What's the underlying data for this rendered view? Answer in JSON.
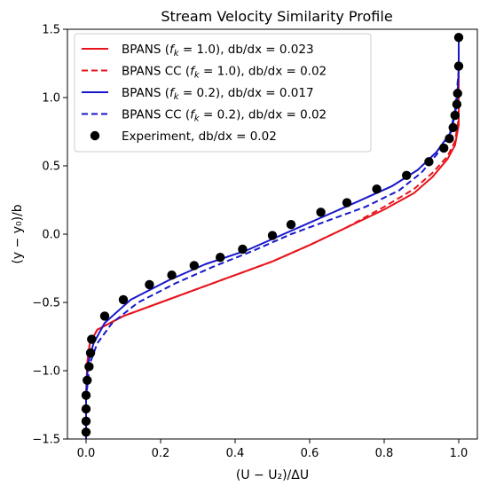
{
  "chart_data": {
    "type": "line",
    "title": "Stream Velocity Similarity Profile",
    "xlabel": "(U − U₂)/ΔU",
    "ylabel": "(y − y₀)/b",
    "xlim": [
      -0.05,
      1.05
    ],
    "ylim": [
      -1.5,
      1.5
    ],
    "x_ticks": [
      0.0,
      0.2,
      0.4,
      0.6,
      0.8,
      1.0
    ],
    "x_tick_labels": [
      "0.0",
      "0.2",
      "0.4",
      "0.6",
      "0.8",
      "1.0"
    ],
    "y_ticks": [
      -1.5,
      -1.0,
      -0.5,
      0.0,
      0.5,
      1.0,
      1.5
    ],
    "y_tick_labels": [
      "−1.5",
      "−1.0",
      "−0.5",
      "0.0",
      "0.5",
      "1.0",
      "1.5"
    ],
    "grid": false,
    "legend_position": "top-left",
    "series": [
      {
        "name": "BPANS (fk = 1.0), db/dx = 0.023",
        "color": "#e8131b",
        "style": "solid",
        "points": [
          [
            0.0,
            -1.5
          ],
          [
            0.0,
            -1.2
          ],
          [
            0.003,
            -0.95
          ],
          [
            0.01,
            -0.8
          ],
          [
            0.03,
            -0.7
          ],
          [
            0.1,
            -0.6
          ],
          [
            0.2,
            -0.5
          ],
          [
            0.3,
            -0.4
          ],
          [
            0.4,
            -0.3
          ],
          [
            0.5,
            -0.2
          ],
          [
            0.6,
            -0.08
          ],
          [
            0.7,
            0.05
          ],
          [
            0.8,
            0.18
          ],
          [
            0.88,
            0.3
          ],
          [
            0.93,
            0.42
          ],
          [
            0.97,
            0.55
          ],
          [
            0.99,
            0.65
          ],
          [
            1.0,
            0.8
          ],
          [
            1.0,
            1.2
          ],
          [
            1.0,
            1.45
          ]
        ]
      },
      {
        "name": "BPANS CC (fk = 1.0), db/dx = 0.02",
        "color": "#e8131b",
        "style": "dashed",
        "points": [
          [
            0.0,
            -1.5
          ],
          [
            0.0,
            -1.2
          ],
          [
            0.003,
            -0.95
          ],
          [
            0.01,
            -0.8
          ],
          [
            0.03,
            -0.7
          ],
          [
            0.1,
            -0.6
          ],
          [
            0.2,
            -0.5
          ],
          [
            0.3,
            -0.4
          ],
          [
            0.4,
            -0.3
          ],
          [
            0.5,
            -0.2
          ],
          [
            0.6,
            -0.08
          ],
          [
            0.7,
            0.05
          ],
          [
            0.8,
            0.2
          ],
          [
            0.88,
            0.33
          ],
          [
            0.93,
            0.45
          ],
          [
            0.97,
            0.57
          ],
          [
            0.99,
            0.68
          ],
          [
            1.0,
            0.85
          ],
          [
            1.0,
            1.2
          ],
          [
            1.0,
            1.45
          ]
        ]
      },
      {
        "name": "BPANS (fk = 0.2), db/dx = 0.017",
        "color": "#1717cc",
        "style": "solid",
        "points": [
          [
            0.0,
            -1.5
          ],
          [
            0.0,
            -1.2
          ],
          [
            0.005,
            -0.95
          ],
          [
            0.02,
            -0.8
          ],
          [
            0.05,
            -0.65
          ],
          [
            0.12,
            -0.48
          ],
          [
            0.22,
            -0.34
          ],
          [
            0.32,
            -0.22
          ],
          [
            0.43,
            -0.12
          ],
          [
            0.53,
            0.0
          ],
          [
            0.63,
            0.12
          ],
          [
            0.73,
            0.24
          ],
          [
            0.82,
            0.35
          ],
          [
            0.89,
            0.47
          ],
          [
            0.94,
            0.6
          ],
          [
            0.98,
            0.75
          ],
          [
            0.995,
            0.95
          ],
          [
            1.0,
            1.2
          ],
          [
            1.0,
            1.45
          ]
        ]
      },
      {
        "name": "BPANS CC (fk = 0.2), db/dx = 0.02",
        "color": "#1717cc",
        "style": "dashed",
        "points": [
          [
            0.0,
            -1.5
          ],
          [
            0.0,
            -1.2
          ],
          [
            0.01,
            -0.95
          ],
          [
            0.03,
            -0.8
          ],
          [
            0.07,
            -0.65
          ],
          [
            0.14,
            -0.5
          ],
          [
            0.24,
            -0.36
          ],
          [
            0.34,
            -0.24
          ],
          [
            0.45,
            -0.12
          ],
          [
            0.55,
            0.0
          ],
          [
            0.65,
            0.1
          ],
          [
            0.75,
            0.2
          ],
          [
            0.84,
            0.32
          ],
          [
            0.9,
            0.45
          ],
          [
            0.94,
            0.58
          ],
          [
            0.975,
            0.72
          ],
          [
            0.99,
            0.9
          ],
          [
            1.0,
            1.2
          ],
          [
            1.0,
            1.45
          ]
        ]
      },
      {
        "name": "Experiment, db/dx = 0.02",
        "color": "#000000",
        "style": "markers",
        "points": [
          [
            0.0,
            -1.45
          ],
          [
            0.0,
            -1.37
          ],
          [
            0.0,
            -1.28
          ],
          [
            0.0,
            -1.18
          ],
          [
            0.003,
            -1.07
          ],
          [
            0.008,
            -0.97
          ],
          [
            0.012,
            -0.87
          ],
          [
            0.015,
            -0.77
          ],
          [
            0.05,
            -0.6
          ],
          [
            0.1,
            -0.48
          ],
          [
            0.17,
            -0.37
          ],
          [
            0.23,
            -0.3
          ],
          [
            0.29,
            -0.23
          ],
          [
            0.36,
            -0.17
          ],
          [
            0.42,
            -0.11
          ],
          [
            0.5,
            -0.01
          ],
          [
            0.55,
            0.07
          ],
          [
            0.63,
            0.16
          ],
          [
            0.7,
            0.23
          ],
          [
            0.78,
            0.33
          ],
          [
            0.86,
            0.43
          ],
          [
            0.92,
            0.53
          ],
          [
            0.96,
            0.63
          ],
          [
            0.975,
            0.7
          ],
          [
            0.985,
            0.78
          ],
          [
            0.99,
            0.87
          ],
          [
            0.995,
            0.95
          ],
          [
            0.997,
            1.03
          ],
          [
            1.0,
            1.23
          ],
          [
            1.0,
            1.44
          ]
        ]
      }
    ],
    "legend": {
      "entries": [
        {
          "pre": "BPANS (",
          "var": "f",
          "sub": "k",
          "post": " = 1.0), db/dx = 0.023"
        },
        {
          "pre": "BPANS CC (",
          "var": "f",
          "sub": "k",
          "post": " = 1.0), db/dx = 0.02"
        },
        {
          "pre": "BPANS (",
          "var": "f",
          "sub": "k",
          "post": " = 0.2), db/dx = 0.017"
        },
        {
          "pre": "BPANS CC (",
          "var": "f",
          "sub": "k",
          "post": " = 0.2), db/dx = 0.02"
        },
        {
          "pre": "Experiment, db/dx = 0.02",
          "var": "",
          "sub": "",
          "post": ""
        }
      ]
    }
  }
}
